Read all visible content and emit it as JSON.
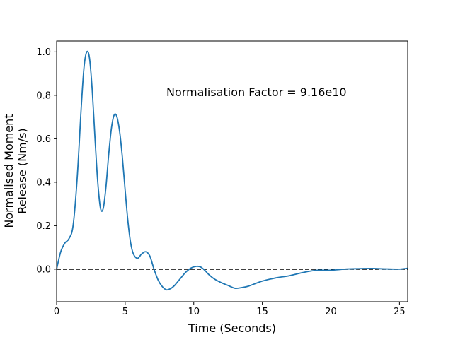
{
  "chart_data": {
    "type": "line",
    "title": "",
    "xlabel": "Time (Seconds)",
    "ylabel_lines": [
      "Normalised Moment",
      "Release (Nm/s)"
    ],
    "xlim": [
      0,
      25.6
    ],
    "ylim": [
      -0.15,
      1.05
    ],
    "xticks": [
      0,
      5,
      10,
      15,
      20,
      25
    ],
    "yticks": [
      0.0,
      0.2,
      0.4,
      0.6,
      0.8,
      1.0
    ],
    "xtick_labels": [
      "0",
      "5",
      "10",
      "15",
      "20",
      "25"
    ],
    "ytick_labels": [
      "0.0",
      "0.2",
      "0.4",
      "0.6",
      "0.8",
      "1.0"
    ],
    "grid": false,
    "annotation": "Normalisation Factor = 9.16e10",
    "colors": {
      "series": "#1f77b4",
      "reference_line": "#000000"
    },
    "reference_line": {
      "y": 0,
      "style": "dashed"
    },
    "series": [
      {
        "x": [
          0,
          0.3,
          0.6,
          0.9,
          1.2,
          1.5,
          1.8,
          2.0,
          2.2,
          2.4,
          2.6,
          2.8,
          3.0,
          3.2,
          3.4,
          3.6,
          3.8,
          4.0,
          4.2,
          4.4,
          4.6,
          4.8,
          5.0,
          5.2,
          5.4,
          5.6,
          5.9,
          6.2,
          6.5,
          6.8,
          7.1,
          7.4,
          7.7,
          8.0,
          8.3,
          8.6,
          9.0,
          9.4,
          9.8,
          10.2,
          10.5,
          10.8,
          11.1,
          11.5,
          12.0,
          12.5,
          13.0,
          13.5,
          14.0,
          15.0,
          16.0,
          17.0,
          18.0,
          19.0,
          20.0,
          21.0,
          22.0,
          23.0,
          24.0,
          25.0,
          25.6
        ],
        "y": [
          0.0,
          0.08,
          0.12,
          0.14,
          0.2,
          0.42,
          0.75,
          0.93,
          1.0,
          0.97,
          0.82,
          0.6,
          0.4,
          0.28,
          0.28,
          0.38,
          0.53,
          0.65,
          0.71,
          0.7,
          0.63,
          0.51,
          0.36,
          0.22,
          0.12,
          0.07,
          0.05,
          0.07,
          0.08,
          0.06,
          0.0,
          -0.05,
          -0.08,
          -0.095,
          -0.09,
          -0.075,
          -0.045,
          -0.015,
          0.005,
          0.013,
          0.01,
          -0.005,
          -0.025,
          -0.045,
          -0.062,
          -0.075,
          -0.088,
          -0.085,
          -0.078,
          -0.055,
          -0.04,
          -0.03,
          -0.015,
          -0.005,
          -0.005,
          0.0,
          0.002,
          0.003,
          0.001,
          0.0,
          0.004
        ]
      }
    ]
  }
}
